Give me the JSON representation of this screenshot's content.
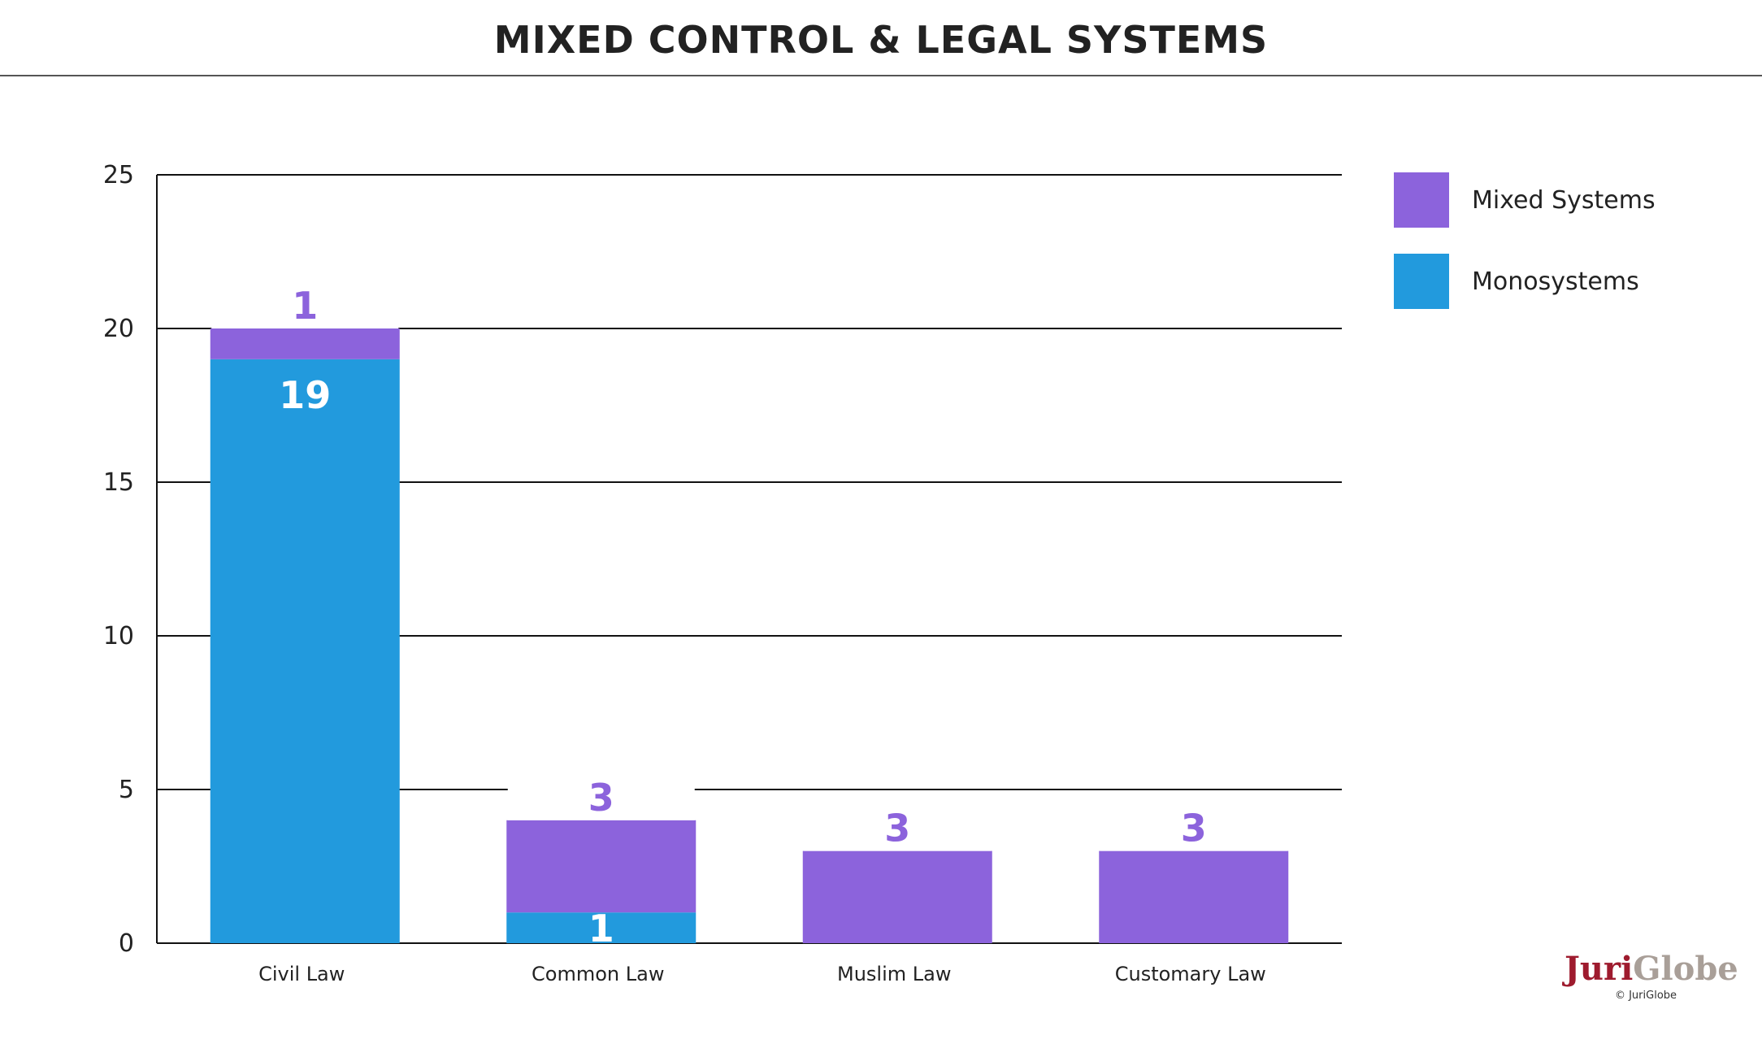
{
  "title": "MIXED CONTROL & LEGAL SYSTEMS",
  "colors": {
    "mixed": "#8c63dc",
    "mono": "#229add",
    "mono_label": "#ffffff",
    "grid": "#111111"
  },
  "legend": [
    {
      "label": "Mixed Systems",
      "color": "#8c63dc"
    },
    {
      "label": "Monosystems",
      "color": "#229add"
    }
  ],
  "brand": {
    "logo_part1": "Juri",
    "logo_part2": "Globe",
    "copyright": "© JuriGlobe"
  },
  "chart_data": {
    "type": "bar",
    "stacked": true,
    "categories": [
      "Civil Law",
      "Common Law",
      "Muslim Law",
      "Customary Law"
    ],
    "series": [
      {
        "name": "Monosystems",
        "values": [
          19,
          1,
          0,
          0
        ],
        "labels": [
          "19",
          "1",
          "",
          ""
        ]
      },
      {
        "name": "Mixed Systems",
        "values": [
          1,
          3,
          3,
          3
        ],
        "labels": [
          "1",
          "3",
          "3",
          "3"
        ]
      }
    ],
    "yticks": [
      0,
      5,
      10,
      15,
      20,
      25
    ],
    "ylim": [
      0,
      25
    ],
    "grid": true,
    "legend_position": "right"
  }
}
